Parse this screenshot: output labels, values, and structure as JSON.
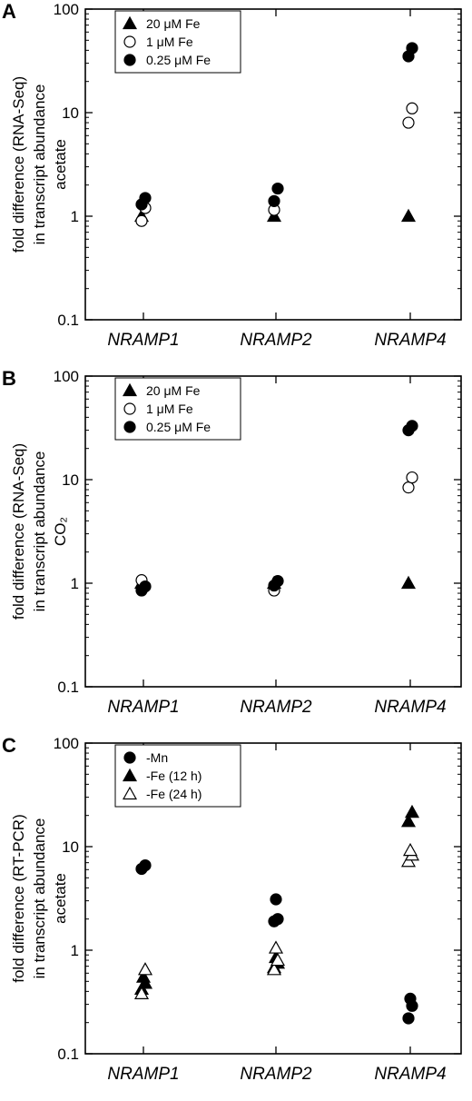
{
  "chart_data": [
    {
      "panel": "A",
      "type": "scatter",
      "yscale": "log",
      "ylim": [
        0.1,
        100
      ],
      "yticks": [
        "0.1",
        "1",
        "10",
        "100"
      ],
      "categories": [
        "NRAMP1",
        "NRAMP2",
        "NRAMP4"
      ],
      "ylabel_lines": [
        "fold difference (RNA-Seq)",
        "in transcript abundance",
        "acetate"
      ],
      "legend_position": "top-left",
      "series": [
        {
          "name": "20 μM Fe",
          "marker": "triangle-filled",
          "points": [
            [
              0,
              1.0
            ],
            [
              1,
              1.0
            ],
            [
              2,
              1.0
            ]
          ]
        },
        {
          "name": "1 μM Fe",
          "marker": "circle-open",
          "points": [
            [
              0,
              0.9
            ],
            [
              0,
              1.2
            ],
            [
              1,
              1.15
            ],
            [
              2,
              8.0
            ],
            [
              2,
              11.0
            ]
          ]
        },
        {
          "name": "0.25 μM Fe",
          "marker": "circle-filled",
          "points": [
            [
              0,
              1.3
            ],
            [
              0,
              1.5
            ],
            [
              1,
              1.4
            ],
            [
              1,
              1.85
            ],
            [
              2,
              35
            ],
            [
              2,
              42
            ]
          ]
        }
      ]
    },
    {
      "panel": "B",
      "type": "scatter",
      "yscale": "log",
      "ylim": [
        0.1,
        100
      ],
      "yticks": [
        "0.1",
        "1",
        "10",
        "100"
      ],
      "categories": [
        "NRAMP1",
        "NRAMP2",
        "NRAMP4"
      ],
      "ylabel_lines": [
        "fold difference (RNA-Seq)",
        "in transcript abundance",
        "CO₂"
      ],
      "legend_position": "top-left",
      "series": [
        {
          "name": "20 μM Fe",
          "marker": "triangle-filled",
          "points": [
            [
              0,
              1.0
            ],
            [
              1,
              1.0
            ],
            [
              2,
              1.0
            ]
          ]
        },
        {
          "name": "1 μM Fe",
          "marker": "circle-open",
          "points": [
            [
              0,
              1.07
            ],
            [
              1,
              0.85
            ],
            [
              2,
              8.4
            ],
            [
              2,
              10.5
            ]
          ]
        },
        {
          "name": "0.25 μM Fe",
          "marker": "circle-filled",
          "points": [
            [
              0,
              0.85
            ],
            [
              0,
              0.93
            ],
            [
              1,
              0.95
            ],
            [
              1,
              1.05
            ],
            [
              2,
              30
            ],
            [
              2,
              33
            ]
          ]
        }
      ]
    },
    {
      "panel": "C",
      "type": "scatter",
      "yscale": "log",
      "ylim": [
        0.1,
        100
      ],
      "yticks": [
        "0.1",
        "1",
        "10",
        "100"
      ],
      "categories": [
        "NRAMP1",
        "NRAMP2",
        "NRAMP4"
      ],
      "ylabel_lines": [
        "fold difference (RT-PCR)",
        "in transcript abundance",
        "acetate"
      ],
      "legend_position": "top-left",
      "series": [
        {
          "name": "-Mn",
          "marker": "circle-filled",
          "points": [
            [
              0,
              6.1
            ],
            [
              0,
              6.6
            ],
            [
              1,
              1.9
            ],
            [
              1,
              2.0
            ],
            [
              1,
              3.1
            ],
            [
              2,
              0.22
            ],
            [
              2,
              0.29
            ],
            [
              2,
              0.34
            ]
          ]
        },
        {
          "name": "-Fe (12 h)",
          "marker": "triangle-filled",
          "points": [
            [
              0,
              0.42
            ],
            [
              0,
              0.48
            ],
            [
              0,
              0.55
            ],
            [
              1,
              0.68
            ],
            [
              1,
              0.75
            ],
            [
              1,
              0.85
            ],
            [
              2,
              17.5
            ],
            [
              2,
              21.5
            ]
          ]
        },
        {
          "name": "-Fe (24 h)",
          "marker": "triangle-open",
          "points": [
            [
              0,
              0.38
            ],
            [
              0,
              0.65
            ],
            [
              1,
              0.65
            ],
            [
              1,
              0.8
            ],
            [
              1,
              1.05
            ],
            [
              2,
              7.2
            ],
            [
              2,
              8.3
            ],
            [
              2,
              9.2
            ]
          ]
        }
      ]
    }
  ]
}
